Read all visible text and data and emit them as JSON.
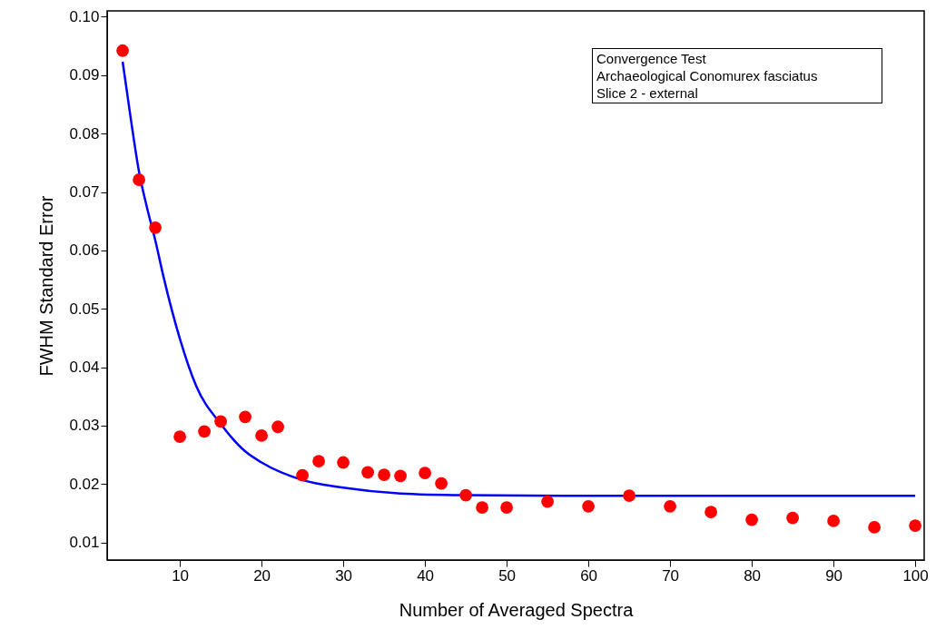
{
  "chart_data": {
    "type": "scatter",
    "xlabel": "Number of Averaged Spectra",
    "ylabel": "FWHM Standard Error",
    "annotations": [
      "Convergence Test",
      "Archaeological Conomurex fasciatus",
      "Slice 2 - external"
    ],
    "xlim": [
      1.1,
      101.1
    ],
    "xticks": [
      10,
      20,
      30,
      40,
      50,
      60,
      70,
      80,
      90,
      100
    ],
    "ylim": [
      0.007,
      0.101
    ],
    "yticks": [
      0.01,
      0.02,
      0.03,
      0.04,
      0.05,
      0.06,
      0.07,
      0.08,
      0.09,
      {
        "value": 0.1,
        "label": "0.10"
      }
    ],
    "grid": false,
    "series": [
      {
        "marker": "circle",
        "color": "#ff0000",
        "x": [
          3,
          5,
          7,
          10,
          13,
          15,
          18,
          20,
          22,
          25,
          27,
          30,
          33,
          35,
          37,
          40,
          42,
          45,
          47,
          50,
          55,
          60,
          65,
          70,
          75,
          80,
          85,
          90,
          95,
          100
        ],
        "values": [
          0.0942,
          0.0721,
          0.0639,
          0.0281,
          0.029,
          0.0307,
          0.0315,
          0.0283,
          0.0298,
          0.0215,
          0.0239,
          0.0237,
          0.022,
          0.0216,
          0.0214,
          0.0219,
          0.0201,
          0.0181,
          0.016,
          0.016,
          0.017,
          0.0162,
          0.018,
          0.0162,
          0.0152,
          0.0139,
          0.0142,
          0.0137,
          0.0126,
          0.0129
        ]
      },
      {
        "type": "line",
        "color": "#0000ff",
        "x": [
          3,
          4,
          5,
          6,
          7,
          8,
          10,
          12,
          15,
          18,
          20,
          25,
          30,
          37,
          45,
          57,
          80,
          100
        ],
        "values": [
          0.0923,
          0.0825,
          0.0735,
          0.0672,
          0.0617,
          0.0555,
          0.0449,
          0.0368,
          0.0303,
          0.0256,
          0.0237,
          0.0207,
          0.0194,
          0.0184,
          0.0181,
          0.018,
          0.018,
          0.018
        ]
      }
    ]
  }
}
